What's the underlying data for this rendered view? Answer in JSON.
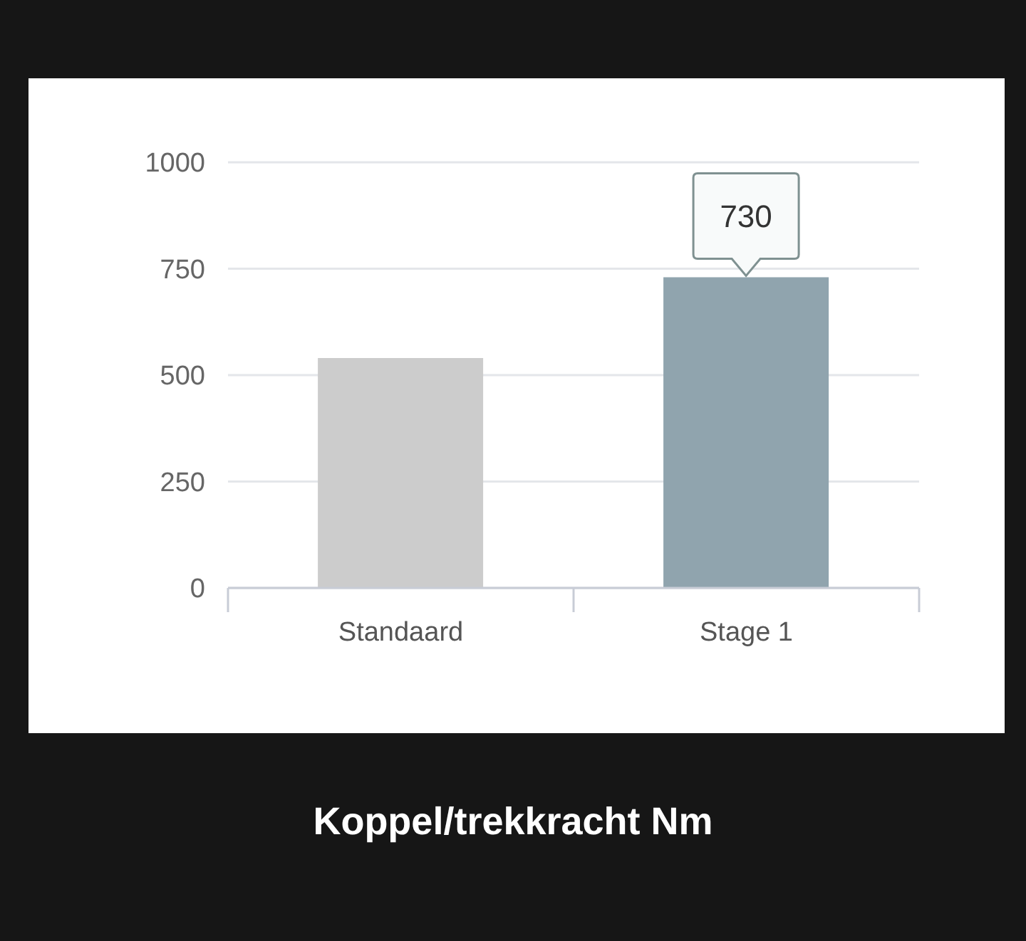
{
  "chart_data": {
    "type": "bar",
    "title": "Koppel/trekkracht Nm",
    "categories": [
      "Standaard",
      "Stage 1"
    ],
    "values": [
      540,
      730
    ],
    "colors": [
      "#cccccc",
      "#90a4ae"
    ],
    "value_labels": [
      null,
      "730"
    ],
    "ylim": [
      0,
      1000
    ],
    "yticks": [
      0,
      250,
      500,
      750,
      1000
    ],
    "grid": "y"
  }
}
